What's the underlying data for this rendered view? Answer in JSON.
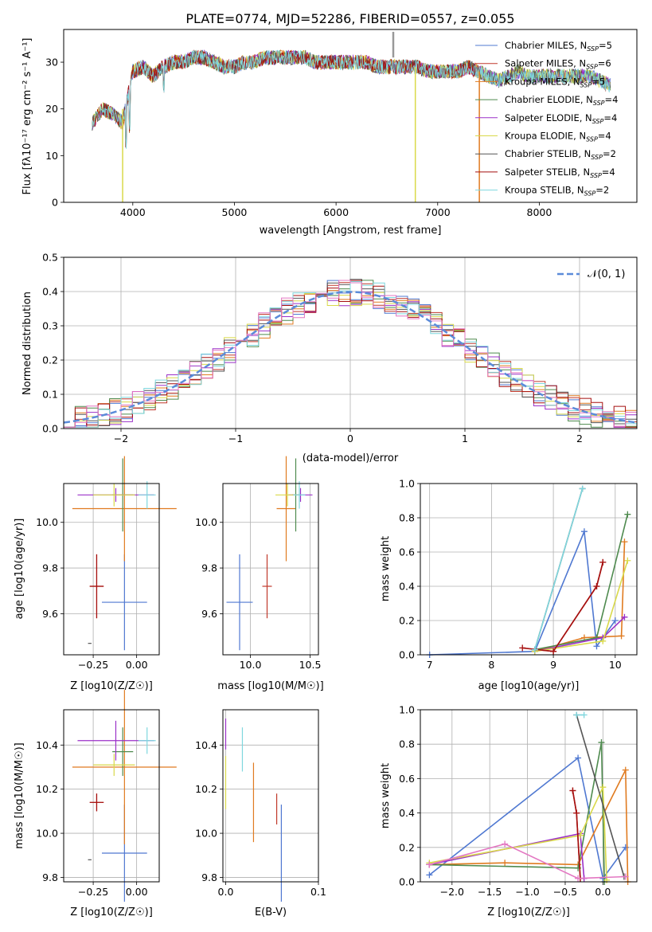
{
  "colors": {
    "Chabrier MILES": "#4f78d1",
    "Salpeter MILES": "#c0392b",
    "Kroupa MILES": "#e07b20",
    "Chabrier ELODIE": "#4e8a4e",
    "Salpeter ELODIE": "#9b30c8",
    "Kroupa ELODIE": "#d9d94a",
    "Chabrier STELIB": "#555555",
    "Salpeter STELIB": "#a50f0f",
    "Kroupa STELIB": "#7fd7de"
  },
  "chart_data": [
    {
      "id": "spectrum",
      "type": "line",
      "title": "PLATE=0774, MJD=52286, FIBERID=0557, z=0.055",
      "xlabel": "wavelength [Angstrom, rest frame]",
      "ylabel": "Flux [fλ10⁻¹⁷ erg cm⁻² s⁻¹ A⁻¹]",
      "xlim": [
        3320,
        8960
      ],
      "ylim": [
        0,
        37
      ],
      "xticks": [
        4000,
        5000,
        6000,
        7000,
        8000
      ],
      "yticks": [
        0,
        10,
        20,
        30
      ],
      "legend_position": "top-right",
      "continuum": {
        "x": [
          3600,
          3700,
          3800,
          3900,
          4000,
          4100,
          4200,
          4300,
          4400,
          4500,
          4600,
          4700,
          4800,
          4900,
          5000,
          5100,
          5200,
          5300,
          5400,
          5500,
          5600,
          5700,
          5800,
          5900,
          6000,
          6100,
          6200,
          6300,
          6400,
          6500,
          6600,
          6700,
          6800,
          6900,
          7000,
          7100,
          7200,
          7300,
          7400,
          7500,
          7600,
          7700,
          7800,
          7900,
          8000,
          8100,
          8200,
          8300,
          8400,
          8500,
          8600,
          8700
        ],
        "y": [
          17,
          20,
          19,
          17,
          28,
          29,
          27,
          29,
          30,
          30,
          31,
          31,
          30,
          29,
          29,
          30,
          30,
          31,
          31,
          31,
          31,
          31,
          30,
          30,
          30,
          30,
          30,
          30,
          29,
          29,
          29,
          29,
          29,
          28,
          28,
          28,
          28,
          29,
          28,
          27,
          26,
          27,
          28,
          27,
          27,
          27,
          27,
          27,
          27,
          27,
          26,
          25
        ]
      },
      "series": [
        {
          "name": "Chabrier MILES, N_SSP=5",
          "label_base": "Chabrier MILES, N",
          "label_value": "=5"
        },
        {
          "name": "Salpeter MILES, N_SSP=6",
          "label_base": "Salpeter MILES, N",
          "label_value": "=6"
        },
        {
          "name": "Kroupa MILES, N_SSP=5",
          "label_base": "Kroupa MILES, N",
          "label_value": "=5"
        },
        {
          "name": "Chabrier ELODIE, N_SSP=4",
          "label_base": "Chabrier ELODIE, N",
          "label_value": "=4"
        },
        {
          "name": "Salpeter ELODIE, N_SSP=4",
          "label_base": "Salpeter ELODIE, N",
          "label_value": "=4"
        },
        {
          "name": "Kroupa ELODIE, N_SSP=4",
          "label_base": "Kroupa ELODIE, N",
          "label_value": "=4"
        },
        {
          "name": "Chabrier STELIB, N_SSP=2",
          "label_base": "Chabrier STELIB, N",
          "label_value": "=2"
        },
        {
          "name": "Salpeter STELIB, N_SSP=4",
          "label_base": "Salpeter STELIB, N",
          "label_value": "=4"
        },
        {
          "name": "Kroupa STELIB, N_SSP=2",
          "label_base": "Kroupa STELIB, N",
          "label_value": "=2"
        }
      ],
      "subscript": "SSP"
    },
    {
      "id": "residuals",
      "type": "line",
      "xlabel": "(data-model)/error",
      "ylabel": "Normed distribution",
      "xlim": [
        -2.5,
        2.5
      ],
      "ylim": [
        0,
        0.5
      ],
      "xticks": [
        -2,
        -1,
        0,
        1,
        2
      ],
      "yticks": [
        0.0,
        0.1,
        0.2,
        0.3,
        0.4,
        0.5
      ],
      "grid": true,
      "reference": {
        "name": "N(0,1)",
        "label": "𝒩(0, 1)",
        "mean": 0,
        "sigma": 1
      },
      "bin_width": 0.1
    },
    {
      "id": "age-vs-Z",
      "type": "scatter",
      "xlabel": "Z [log10(Z/Z☉)]",
      "ylabel": "age  [log10(age/yr)]",
      "xlim": [
        -0.42,
        0.13
      ],
      "ylim": [
        9.42,
        10.17
      ],
      "xticks": [
        -0.25,
        0.0
      ],
      "yticks": [
        9.6,
        9.8,
        10.0
      ],
      "points": [
        {
          "series": "Chabrier MILES",
          "x": -0.07,
          "y": 9.65,
          "xerr": 0.13,
          "yerr": 0.21
        },
        {
          "series": "Salpeter MILES",
          "x": -0.23,
          "y": 9.72,
          "xerr": 0.04,
          "yerr": 0.14
        },
        {
          "series": "Kroupa MILES",
          "x": -0.07,
          "y": 10.06,
          "xerr": 0.3,
          "yerr": 0.23
        },
        {
          "series": "Chabrier ELODIE",
          "x": -0.08,
          "y": 10.12,
          "xerr": 0.06,
          "yerr": 0.16
        },
        {
          "series": "Salpeter ELODIE",
          "x": -0.12,
          "y": 10.12,
          "xerr": 0.22,
          "yerr": 0.03
        },
        {
          "series": "Kroupa ELODIE",
          "x": -0.13,
          "y": 10.12,
          "xerr": 0.12,
          "yerr": 0.05
        },
        {
          "series": "Chabrier STELIB",
          "x": -0.27,
          "y": 9.47,
          "xerr": 0.01,
          "yerr": 0.0
        },
        {
          "series": "Salpeter STELIB",
          "x": -0.23,
          "y": 9.72,
          "xerr": 0.04,
          "yerr": 0.14
        },
        {
          "series": "Kroupa STELIB",
          "x": 0.06,
          "y": 10.12,
          "xerr": 0.05,
          "yerr": 0.06
        }
      ]
    },
    {
      "id": "age-vs-mass",
      "type": "scatter",
      "xlabel": "mass [log10(M/M☉)]",
      "xlim": [
        9.77,
        10.57
      ],
      "ylim": [
        9.42,
        10.17
      ],
      "xticks": [
        10.0,
        10.5
      ],
      "yticks": [
        9.6,
        9.8,
        10.0
      ],
      "points": [
        {
          "series": "Chabrier MILES",
          "x": 9.91,
          "y": 9.65,
          "xerr": 0.11,
          "yerr": 0.21
        },
        {
          "series": "Salpeter MILES",
          "x": 10.14,
          "y": 9.72,
          "xerr": 0.04,
          "yerr": 0.14
        },
        {
          "series": "Kroupa MILES",
          "x": 10.3,
          "y": 10.06,
          "xerr": 0.08,
          "yerr": 0.23
        },
        {
          "series": "Chabrier ELODIE",
          "x": 10.38,
          "y": 10.12,
          "xerr": 0.03,
          "yerr": 0.16
        },
        {
          "series": "Salpeter ELODIE",
          "x": 10.42,
          "y": 10.12,
          "xerr": 0.1,
          "yerr": 0.03
        },
        {
          "series": "Kroupa ELODIE",
          "x": 10.31,
          "y": 10.12,
          "xerr": 0.1,
          "yerr": 0.05
        },
        {
          "series": "Kroupa STELIB",
          "x": 10.41,
          "y": 10.12,
          "xerr": 0.05,
          "yerr": 0.06
        }
      ]
    },
    {
      "id": "weight-vs-age",
      "type": "line",
      "xlabel": "age  [log10(age/yr)]",
      "ylabel": "mass weight",
      "xlim": [
        6.85,
        10.35
      ],
      "ylim": [
        0,
        1
      ],
      "xticks": [
        7,
        8,
        9,
        10
      ],
      "yticks": [
        0.0,
        0.2,
        0.4,
        0.6,
        0.8,
        1.0
      ],
      "grid": true,
      "series": [
        {
          "name": "Chabrier MILES",
          "x": [
            7.0,
            8.7,
            9.5,
            9.7,
            10.0
          ],
          "y": [
            0.0,
            0.02,
            0.72,
            0.05,
            0.2
          ]
        },
        {
          "name": "Salpeter MILES",
          "x": [
            8.7,
            9.0,
            9.7,
            9.8
          ],
          "y": [
            0.03,
            0.02,
            0.4,
            0.54
          ]
        },
        {
          "name": "Kroupa MILES",
          "x": [
            8.7,
            9.5,
            10.1,
            10.15
          ],
          "y": [
            0.02,
            0.1,
            0.11,
            0.66
          ]
        },
        {
          "name": "Chabrier ELODIE",
          "x": [
            8.7,
            9.7,
            10.2
          ],
          "y": [
            0.03,
            0.1,
            0.82
          ]
        },
        {
          "name": "Salpeter ELODIE",
          "x": [
            8.7,
            9.8,
            10.15
          ],
          "y": [
            0.02,
            0.1,
            0.22
          ]
        },
        {
          "name": "Kroupa ELODIE",
          "x": [
            8.7,
            9.8,
            10.2
          ],
          "y": [
            0.02,
            0.08,
            0.55
          ]
        },
        {
          "name": "Chabrier STELIB",
          "x": [
            8.7,
            9.47
          ],
          "y": [
            0.03,
            0.97
          ]
        },
        {
          "name": "Salpeter STELIB",
          "x": [
            8.5,
            9.0,
            9.7,
            9.8
          ],
          "y": [
            0.04,
            0.02,
            0.4,
            0.54
          ]
        },
        {
          "name": "Kroupa STELIB",
          "x": [
            8.7,
            9.47
          ],
          "y": [
            0.03,
            0.97
          ]
        }
      ]
    },
    {
      "id": "mass-vs-Z",
      "type": "scatter",
      "xlabel": "Z [log10(Z/Z☉)]",
      "ylabel": "mass [log10(M/M☉)]",
      "xlim": [
        -0.42,
        0.13
      ],
      "ylim": [
        9.78,
        10.56
      ],
      "xticks": [
        -0.25,
        0.0
      ],
      "yticks": [
        9.8,
        10.0,
        10.2,
        10.4
      ],
      "points": [
        {
          "series": "Chabrier MILES",
          "x": -0.07,
          "y": 9.91,
          "xerr": 0.13,
          "yerr": 0.22
        },
        {
          "series": "Salpeter MILES",
          "x": -0.23,
          "y": 10.14,
          "xerr": 0.04,
          "yerr": 0.04
        },
        {
          "series": "Kroupa MILES",
          "x": -0.07,
          "y": 10.3,
          "xerr": 0.3,
          "yerr": 0.35
        },
        {
          "series": "Chabrier ELODIE",
          "x": -0.08,
          "y": 10.37,
          "xerr": 0.06,
          "yerr": 0.11
        },
        {
          "series": "Salpeter ELODIE",
          "x": -0.12,
          "y": 10.42,
          "xerr": 0.22,
          "yerr": 0.09
        },
        {
          "series": "Kroupa ELODIE",
          "x": -0.13,
          "y": 10.31,
          "xerr": 0.12,
          "yerr": 0.05
        },
        {
          "series": "Chabrier STELIB",
          "x": -0.27,
          "y": 9.88,
          "xerr": 0.01,
          "yerr": 0.0
        },
        {
          "series": "Salpeter STELIB",
          "x": -0.23,
          "y": 10.14,
          "xerr": 0.04,
          "yerr": 0.04
        },
        {
          "series": "Kroupa STELIB",
          "x": 0.06,
          "y": 10.42,
          "xerr": 0.05,
          "yerr": 0.06
        }
      ]
    },
    {
      "id": "mass-vs-EBV",
      "type": "scatter",
      "xlabel": "E(B-V)",
      "xlim": [
        -0.003,
        0.1
      ],
      "ylim": [
        9.78,
        10.56
      ],
      "xticks": [
        0.0,
        0.1
      ],
      "yticks": [
        9.8,
        10.0,
        10.2,
        10.4
      ],
      "points": [
        {
          "series": "Chabrier MILES",
          "x": 0.06,
          "y": 9.91,
          "xerr": 0,
          "yerr": 0.22
        },
        {
          "series": "Salpeter MILES",
          "x": 0.055,
          "y": 10.11,
          "xerr": 0,
          "yerr": 0.07
        },
        {
          "series": "Kroupa MILES",
          "x": 0.03,
          "y": 10.14,
          "xerr": 0,
          "yerr": 0.18
        },
        {
          "series": "Salpeter ELODIE",
          "x": 0.0,
          "y": 10.45,
          "xerr": 0,
          "yerr": 0.07
        },
        {
          "series": "Kroupa ELODIE",
          "x": 0.0,
          "y": 10.23,
          "xerr": 0,
          "yerr": 0.12
        },
        {
          "series": "Kroupa STELIB",
          "x": 0.018,
          "y": 10.38,
          "xerr": 0,
          "yerr": 0.1
        }
      ]
    },
    {
      "id": "weight-vs-Z",
      "type": "line",
      "xlabel": "Z [log10(Z/Z☉)]",
      "ylabel": "mass weight",
      "xlim": [
        -2.42,
        0.45
      ],
      "ylim": [
        0,
        1
      ],
      "xticks": [
        -2.0,
        -1.5,
        -1.0,
        -0.5,
        0.0
      ],
      "yticks": [
        0.0,
        0.2,
        0.4,
        0.6,
        0.8,
        1.0
      ],
      "grid": true,
      "series": [
        {
          "name": "Chabrier MILES",
          "x": [
            -2.3,
            -0.33,
            0.0,
            0.3
          ],
          "y": [
            0.04,
            0.72,
            0.02,
            0.2
          ]
        },
        {
          "name": "Salpeter MILES",
          "x": [
            -0.4,
            -0.35,
            -0.3
          ],
          "y": [
            0.53,
            0.4,
            0.02
          ]
        },
        {
          "name": "Kroupa MILES",
          "x": [
            -2.3,
            -1.3,
            -0.33,
            0.3,
            0.33
          ],
          "y": [
            0.1,
            0.11,
            0.1,
            0.65,
            0.0
          ]
        },
        {
          "name": "Chabrier ELODIE",
          "x": [
            -2.3,
            -0.33,
            -0.02,
            0.02
          ],
          "y": [
            0.1,
            0.08,
            0.81,
            0.0
          ]
        },
        {
          "name": "Salpeter ELODIE",
          "x": [
            -2.3,
            -0.3,
            -0.25
          ],
          "y": [
            0.1,
            0.28,
            0.02
          ]
        },
        {
          "name": "Kroupa ELODIE",
          "x": [
            -2.3,
            -0.3,
            0.0,
            0.05
          ],
          "y": [
            0.11,
            0.27,
            0.55,
            0.01
          ]
        },
        {
          "name": "Chabrier STELIB",
          "x": [
            -0.35,
            0.28
          ],
          "y": [
            0.97,
            0.03
          ]
        },
        {
          "name": "Salpeter STELIB",
          "x": [
            -0.4,
            -0.35,
            -0.3
          ],
          "y": [
            0.53,
            0.4,
            0.02
          ]
        },
        {
          "name": "Kroupa STELIB",
          "x": [
            -0.35,
            -0.25
          ],
          "y": [
            0.97,
            0.97
          ]
        },
        {
          "name": "Salpeter ELODIE pink",
          "color": "#e377c2",
          "x": [
            -2.3,
            -1.3,
            -0.33,
            0.3
          ],
          "y": [
            0.1,
            0.22,
            0.02,
            0.03
          ]
        }
      ]
    }
  ]
}
